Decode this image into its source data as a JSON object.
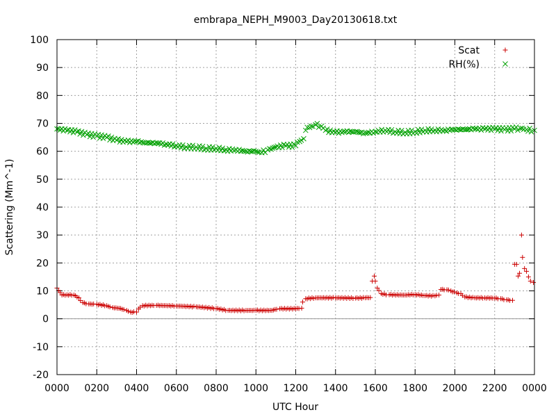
{
  "chart_data": {
    "type": "scatter",
    "title": "embrapa_NEPH_M9003_Day20130618.txt",
    "xlabel": "UTC Hour",
    "ylabel": "Scattering (Mm^-1)",
    "xlim": [
      0,
      24
    ],
    "ylim": [
      -20,
      100
    ],
    "grid": true,
    "legend_position": "top-right",
    "x_tick_values": [
      0,
      2,
      4,
      6,
      8,
      10,
      12,
      14,
      16,
      18,
      20,
      22,
      24
    ],
    "x_tick_labels": [
      "0000",
      "0200",
      "0400",
      "0600",
      "0800",
      "1000",
      "1200",
      "1400",
      "1600",
      "1800",
      "2000",
      "2200",
      "0000"
    ],
    "y_ticks": [
      -20,
      -10,
      0,
      10,
      20,
      30,
      40,
      50,
      60,
      70,
      80,
      90,
      100
    ],
    "zero_line": true,
    "series": [
      {
        "name": "Scat",
        "marker": "plus",
        "color": "#cc0000",
        "points": [
          [
            0.0,
            11.0
          ],
          [
            0.25,
            8.5
          ],
          [
            0.5,
            8.6
          ],
          [
            0.85,
            8.5
          ],
          [
            1.1,
            7.5
          ],
          [
            1.3,
            5.8
          ],
          [
            1.6,
            5.3
          ],
          [
            2.0,
            5.2
          ],
          [
            2.5,
            4.7
          ],
          [
            2.8,
            4.0
          ],
          [
            3.2,
            3.7
          ],
          [
            3.5,
            3.0
          ],
          [
            3.7,
            2.4
          ],
          [
            4.0,
            2.4
          ],
          [
            4.1,
            3.5
          ],
          [
            4.3,
            4.7
          ],
          [
            5.0,
            4.8
          ],
          [
            6.0,
            4.6
          ],
          [
            7.0,
            4.3
          ],
          [
            8.0,
            3.7
          ],
          [
            8.6,
            3.0
          ],
          [
            9.5,
            3.0
          ],
          [
            10.0,
            3.0
          ],
          [
            10.8,
            3.0
          ],
          [
            11.2,
            3.6
          ],
          [
            12.0,
            3.6
          ],
          [
            12.3,
            3.8
          ],
          [
            12.35,
            6.0
          ],
          [
            12.5,
            7.2
          ],
          [
            13.0,
            7.5
          ],
          [
            14.0,
            7.5
          ],
          [
            15.0,
            7.4
          ],
          [
            15.5,
            7.5
          ],
          [
            15.75,
            7.6
          ],
          [
            15.85,
            13.5
          ],
          [
            15.95,
            15.3
          ],
          [
            16.0,
            13.5
          ],
          [
            16.1,
            11.0
          ],
          [
            16.3,
            9.0
          ],
          [
            16.7,
            8.6
          ],
          [
            17.5,
            8.5
          ],
          [
            18.0,
            8.7
          ],
          [
            18.5,
            8.3
          ],
          [
            19.0,
            8.2
          ],
          [
            19.2,
            8.5
          ],
          [
            19.3,
            10.5
          ],
          [
            19.6,
            10.4
          ],
          [
            19.8,
            10.0
          ],
          [
            20.1,
            9.3
          ],
          [
            20.3,
            9.0
          ],
          [
            20.5,
            7.8
          ],
          [
            21.0,
            7.5
          ],
          [
            21.5,
            7.5
          ],
          [
            22.0,
            7.4
          ],
          [
            22.3,
            7.2
          ],
          [
            22.6,
            6.8
          ],
          [
            22.9,
            6.6
          ],
          [
            23.0,
            19.5
          ],
          [
            23.1,
            19.5
          ],
          [
            23.18,
            15.3
          ],
          [
            23.25,
            16.3
          ],
          [
            23.35,
            30.0
          ],
          [
            23.4,
            22.0
          ],
          [
            23.5,
            18.0
          ],
          [
            23.6,
            17.0
          ],
          [
            23.7,
            15.0
          ],
          [
            23.8,
            13.5
          ],
          [
            23.95,
            13.0
          ]
        ]
      },
      {
        "name": "RH(%)",
        "marker": "cross",
        "color": "#00a000",
        "points": [
          [
            0.0,
            68.0
          ],
          [
            0.5,
            67.5
          ],
          [
            1.0,
            67.0
          ],
          [
            1.5,
            66.0
          ],
          [
            2.0,
            65.5
          ],
          [
            2.5,
            65.0
          ],
          [
            3.0,
            64.0
          ],
          [
            3.5,
            63.5
          ],
          [
            4.0,
            63.5
          ],
          [
            4.5,
            63.0
          ],
          [
            5.0,
            63.0
          ],
          [
            5.5,
            62.5
          ],
          [
            6.0,
            62.0
          ],
          [
            6.5,
            61.5
          ],
          [
            7.0,
            61.5
          ],
          [
            7.5,
            61.0
          ],
          [
            8.0,
            61.0
          ],
          [
            8.5,
            60.5
          ],
          [
            9.0,
            60.5
          ],
          [
            9.5,
            60.0
          ],
          [
            10.0,
            60.0
          ],
          [
            10.3,
            59.5
          ],
          [
            10.6,
            60.5
          ],
          [
            11.0,
            61.5
          ],
          [
            11.5,
            62.0
          ],
          [
            12.0,
            62.0
          ],
          [
            12.2,
            63.5
          ],
          [
            12.4,
            64.5
          ],
          [
            12.5,
            67.5
          ],
          [
            12.7,
            68.5
          ],
          [
            13.0,
            69.5
          ],
          [
            13.3,
            69.0
          ],
          [
            13.5,
            67.5
          ],
          [
            14.0,
            66.8
          ],
          [
            14.5,
            67.0
          ],
          [
            15.0,
            67.0
          ],
          [
            15.5,
            66.5
          ],
          [
            16.0,
            67.0
          ],
          [
            16.5,
            67.5
          ],
          [
            17.0,
            67.0
          ],
          [
            17.5,
            66.8
          ],
          [
            18.0,
            67.0
          ],
          [
            18.5,
            67.5
          ],
          [
            19.0,
            67.5
          ],
          [
            19.5,
            67.5
          ],
          [
            20.0,
            67.8
          ],
          [
            20.5,
            67.8
          ],
          [
            21.0,
            68.0
          ],
          [
            21.5,
            68.0
          ],
          [
            22.0,
            68.0
          ],
          [
            22.5,
            67.8
          ],
          [
            23.0,
            68.0
          ],
          [
            23.3,
            68.2
          ],
          [
            23.6,
            67.8
          ],
          [
            24.0,
            67.5
          ]
        ]
      }
    ]
  }
}
